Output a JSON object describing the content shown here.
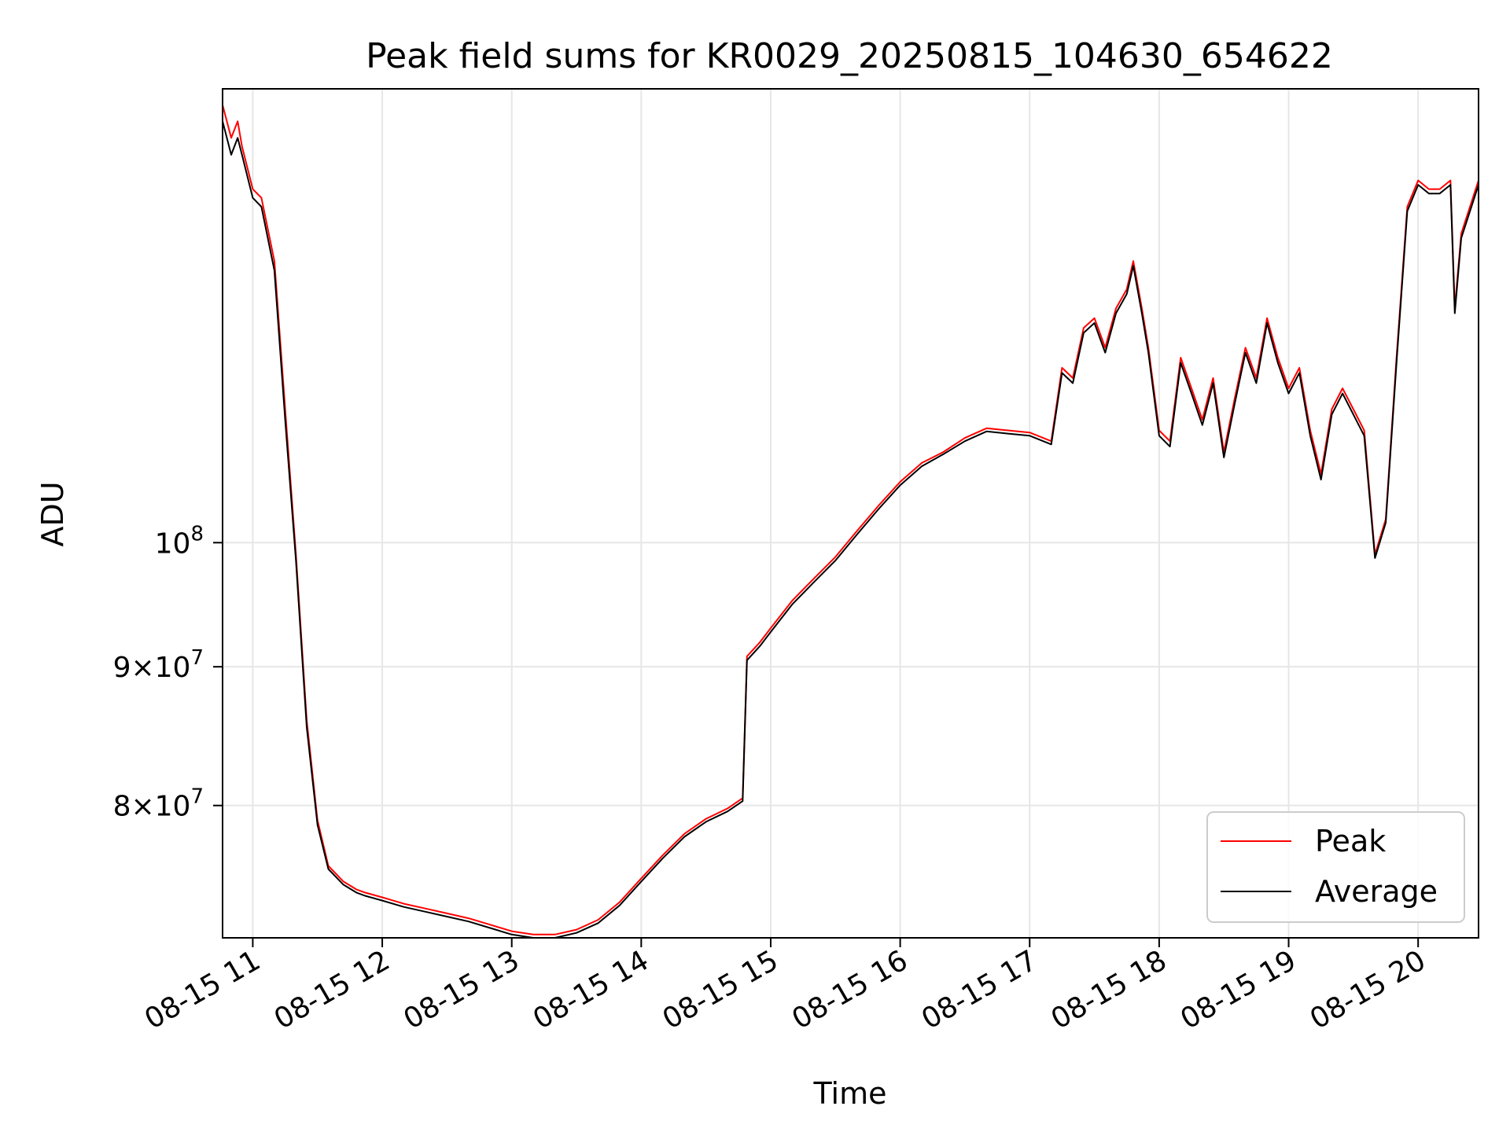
{
  "chart_data": {
    "type": "line",
    "title": "Peak field sums for KR0029_20250815_104630_654622",
    "xlabel": "Time",
    "ylabel": "ADU",
    "yscale": "log",
    "grid": true,
    "legend_position": "lower-right",
    "xlim": [
      "08-15 10:46",
      "08-15 20:28"
    ],
    "ylim": [
      71500000,
      147000000
    ],
    "x_ticks": [
      "08-15 11",
      "08-15 12",
      "08-15 13",
      "08-15 14",
      "08-15 15",
      "08-15 16",
      "08-15 17",
      "08-15 18",
      "08-15 19",
      "08-15 20"
    ],
    "y_ticks": [
      {
        "value": 80000000,
        "mant": "8",
        "exp": "7"
      },
      {
        "value": 90000000,
        "mant": "9",
        "exp": "7"
      },
      {
        "value": 100000000,
        "mant": "",
        "exp": "8"
      }
    ],
    "series": [
      {
        "name": "Peak",
        "color": "#ff0000",
        "x": [
          "08-15 10:46",
          "08-15 10:50",
          "08-15 10:53",
          "08-15 10:55",
          "08-15 11:00",
          "08-15 11:04",
          "08-15 11:10",
          "08-15 11:15",
          "08-15 11:20",
          "08-15 11:25",
          "08-15 11:30",
          "08-15 11:35",
          "08-15 11:42",
          "08-15 11:48",
          "08-15 11:52",
          "08-15 12:00",
          "08-15 12:10",
          "08-15 12:20",
          "08-15 12:30",
          "08-15 12:40",
          "08-15 12:50",
          "08-15 13:00",
          "08-15 13:10",
          "08-15 13:20",
          "08-15 13:30",
          "08-15 13:40",
          "08-15 13:50",
          "08-15 14:00",
          "08-15 14:10",
          "08-15 14:20",
          "08-15 14:30",
          "08-15 14:40",
          "08-15 14:47",
          "08-15 14:49",
          "08-15 14:55",
          "08-15 15:00",
          "08-15 15:10",
          "08-15 15:20",
          "08-15 15:30",
          "08-15 15:40",
          "08-15 15:50",
          "08-15 16:00",
          "08-15 16:10",
          "08-15 16:20",
          "08-15 16:30",
          "08-15 16:40",
          "08-15 16:50",
          "08-15 17:00",
          "08-15 17:10",
          "08-15 17:15",
          "08-15 17:20",
          "08-15 17:25",
          "08-15 17:30",
          "08-15 17:35",
          "08-15 17:40",
          "08-15 17:45",
          "08-15 17:48",
          "08-15 17:52",
          "08-15 17:55",
          "08-15 18:00",
          "08-15 18:05",
          "08-15 18:10",
          "08-15 18:15",
          "08-15 18:20",
          "08-15 18:25",
          "08-15 18:30",
          "08-15 18:35",
          "08-15 18:40",
          "08-15 18:45",
          "08-15 18:50",
          "08-15 18:55",
          "08-15 19:00",
          "08-15 19:05",
          "08-15 19:10",
          "08-15 19:15",
          "08-15 19:20",
          "08-15 19:25",
          "08-15 19:30",
          "08-15 19:35",
          "08-15 19:40",
          "08-15 19:45",
          "08-15 19:50",
          "08-15 19:55",
          "08-15 20:00",
          "08-15 20:05",
          "08-15 20:10",
          "08-15 20:15",
          "08-15 20:17",
          "08-15 20:20",
          "08-15 20:28"
        ],
        "y": [
          145000000,
          141000000,
          143000000,
          140000000,
          135000000,
          134000000,
          127000000,
          112000000,
          99000000,
          86000000,
          79000000,
          76000000,
          75000000,
          74500000,
          74300000,
          74000000,
          73600000,
          73300000,
          73000000,
          72700000,
          72300000,
          71900000,
          71700000,
          71700000,
          72000000,
          72600000,
          73700000,
          75200000,
          76700000,
          78100000,
          79100000,
          79800000,
          80500000,
          90800000,
          91900000,
          93000000,
          95200000,
          97000000,
          98800000,
          101000000,
          103200000,
          105300000,
          107000000,
          108000000,
          109300000,
          110200000,
          110000000,
          109800000,
          109000000,
          116000000,
          115000000,
          120000000,
          121000000,
          118000000,
          122000000,
          124000000,
          127000000,
          122000000,
          118000000,
          110000000,
          109000000,
          117000000,
          114000000,
          111000000,
          115000000,
          108000000,
          113000000,
          118000000,
          115000000,
          121000000,
          117000000,
          114000000,
          116000000,
          110000000,
          106000000,
          112000000,
          114000000,
          112000000,
          110000000,
          99000000,
          102000000,
          117000000,
          133000000,
          136000000,
          135000000,
          135000000,
          136000000,
          122000000,
          130000000,
          136000000
        ]
      },
      {
        "name": "Average",
        "color": "#000000",
        "x": [
          "08-15 10:46",
          "08-15 10:50",
          "08-15 10:53",
          "08-15 10:55",
          "08-15 11:00",
          "08-15 11:04",
          "08-15 11:10",
          "08-15 11:15",
          "08-15 11:20",
          "08-15 11:25",
          "08-15 11:30",
          "08-15 11:35",
          "08-15 11:42",
          "08-15 11:48",
          "08-15 11:52",
          "08-15 12:00",
          "08-15 12:10",
          "08-15 12:20",
          "08-15 12:30",
          "08-15 12:40",
          "08-15 12:50",
          "08-15 13:00",
          "08-15 13:10",
          "08-15 13:20",
          "08-15 13:30",
          "08-15 13:40",
          "08-15 13:50",
          "08-15 14:00",
          "08-15 14:10",
          "08-15 14:20",
          "08-15 14:30",
          "08-15 14:40",
          "08-15 14:47",
          "08-15 14:49",
          "08-15 14:55",
          "08-15 15:00",
          "08-15 15:10",
          "08-15 15:20",
          "08-15 15:30",
          "08-15 15:40",
          "08-15 15:50",
          "08-15 16:00",
          "08-15 16:10",
          "08-15 16:20",
          "08-15 16:30",
          "08-15 16:40",
          "08-15 16:50",
          "08-15 17:00",
          "08-15 17:10",
          "08-15 17:15",
          "08-15 17:20",
          "08-15 17:25",
          "08-15 17:30",
          "08-15 17:35",
          "08-15 17:40",
          "08-15 17:45",
          "08-15 17:48",
          "08-15 17:52",
          "08-15 17:55",
          "08-15 18:00",
          "08-15 18:05",
          "08-15 18:10",
          "08-15 18:15",
          "08-15 18:20",
          "08-15 18:25",
          "08-15 18:30",
          "08-15 18:35",
          "08-15 18:40",
          "08-15 18:45",
          "08-15 18:50",
          "08-15 18:55",
          "08-15 19:00",
          "08-15 19:05",
          "08-15 19:10",
          "08-15 19:15",
          "08-15 19:20",
          "08-15 19:25",
          "08-15 19:30",
          "08-15 19:35",
          "08-15 19:40",
          "08-15 19:45",
          "08-15 19:50",
          "08-15 19:55",
          "08-15 20:00",
          "08-15 20:05",
          "08-15 20:10",
          "08-15 20:15",
          "08-15 20:17",
          "08-15 20:20",
          "08-15 20:28"
        ],
        "y": [
          143000000,
          139000000,
          141000000,
          139000000,
          134000000,
          133000000,
          126000000,
          111000000,
          98500000,
          85500000,
          78700000,
          75800000,
          74800000,
          74300000,
          74100000,
          73800000,
          73400000,
          73100000,
          72800000,
          72500000,
          72100000,
          71700000,
          71500000,
          71500000,
          71800000,
          72400000,
          73500000,
          75000000,
          76500000,
          77900000,
          78900000,
          79600000,
          80300000,
          90500000,
          91600000,
          92700000,
          94900000,
          96700000,
          98500000,
          100700000,
          102900000,
          105000000,
          106700000,
          107800000,
          109000000,
          109900000,
          109700000,
          109500000,
          108700000,
          115500000,
          114500000,
          119500000,
          120500000,
          117500000,
          121500000,
          123500000,
          126500000,
          121500000,
          117500000,
          109500000,
          108500000,
          116500000,
          113500000,
          110500000,
          114500000,
          107500000,
          112500000,
          117500000,
          114500000,
          120500000,
          116500000,
          113500000,
          115500000,
          109500000,
          105500000,
          111500000,
          113500000,
          111500000,
          109500000,
          98700000,
          101700000,
          116500000,
          132500000,
          135500000,
          134500000,
          134500000,
          135500000,
          121500000,
          129500000,
          135500000
        ]
      }
    ]
  }
}
